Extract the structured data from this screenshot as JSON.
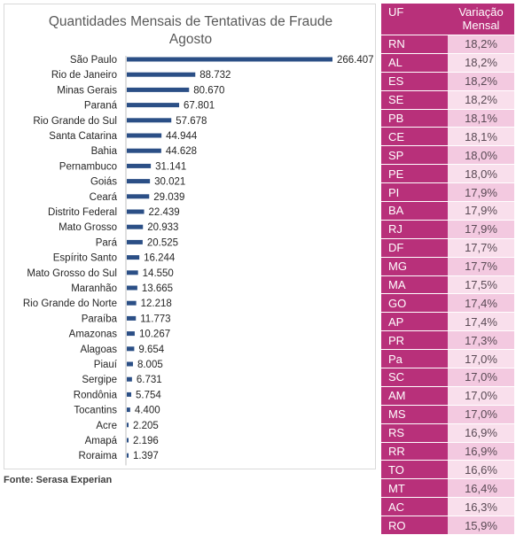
{
  "chart_data": {
    "type": "bar",
    "orientation": "horizontal",
    "title": "Quantidades Mensais de Tentativas de Fraude",
    "subtitle": "Agosto",
    "categories": [
      "São Paulo",
      "Rio de Janeiro",
      "Minas Gerais",
      "Paraná",
      "Rio Grande do Sul",
      "Santa Catarina",
      "Bahia",
      "Pernambuco",
      "Goiás",
      "Ceará",
      "Distrito Federal",
      "Mato Grosso",
      "Pará",
      "Espírito Santo",
      "Mato Grosso do Sul",
      "Maranhão",
      "Rio Grande do Norte",
      "Paraíba",
      "Amazonas",
      "Alagoas",
      "Piauí",
      "Sergipe",
      "Rondônia",
      "Tocantins",
      "Acre",
      "Amapá",
      "Roraima"
    ],
    "values": [
      266407,
      88732,
      80670,
      67801,
      57678,
      44944,
      44628,
      31141,
      30021,
      29039,
      22439,
      20933,
      20525,
      16244,
      14550,
      13665,
      12218,
      11773,
      10267,
      9654,
      8005,
      6731,
      5754,
      4400,
      2205,
      2196,
      1397
    ],
    "value_labels": [
      "266.407",
      "88.732",
      "80.670",
      "67.801",
      "57.678",
      "44.944",
      "44.628",
      "31.141",
      "30.021",
      "29.039",
      "22.439",
      "20.933",
      "20.525",
      "16.244",
      "14.550",
      "13.665",
      "12.218",
      "11.773",
      "10.267",
      "9.654",
      "8.005",
      "6.731",
      "5.754",
      "4.400",
      "2.205",
      "2.196",
      "1.397"
    ],
    "colors": {
      "bar": "#2b4f86"
    },
    "grid": false
  },
  "source": "Fonte: Serasa Experian",
  "table": {
    "headers": [
      "UF",
      "Variação Mensal"
    ],
    "rows": [
      [
        "RN",
        "18,2%"
      ],
      [
        "AL",
        "18,2%"
      ],
      [
        "ES",
        "18,2%"
      ],
      [
        "SE",
        "18,2%"
      ],
      [
        "PB",
        "18,1%"
      ],
      [
        "CE",
        "18,1%"
      ],
      [
        "SP",
        "18,0%"
      ],
      [
        "PE",
        "18,0%"
      ],
      [
        "PI",
        "17,9%"
      ],
      [
        "BA",
        "17,9%"
      ],
      [
        "RJ",
        "17,9%"
      ],
      [
        "DF",
        "17,7%"
      ],
      [
        "MG",
        "17,7%"
      ],
      [
        "MA",
        "17,5%"
      ],
      [
        "GO",
        "17,4%"
      ],
      [
        "AP",
        "17,4%"
      ],
      [
        "PR",
        "17,3%"
      ],
      [
        "Pa",
        "17,0%"
      ],
      [
        "SC",
        "17,0%"
      ],
      [
        "AM",
        "17,0%"
      ],
      [
        "MS",
        "17,0%"
      ],
      [
        "RS",
        "16,9%"
      ],
      [
        "RR",
        "16,9%"
      ],
      [
        "TO",
        "16,6%"
      ],
      [
        "MT",
        "16,4%"
      ],
      [
        "AC",
        "16,3%"
      ],
      [
        "RO",
        "15,9%"
      ]
    ],
    "colors": {
      "header": "#b8307a",
      "uf_cell": "#b8307a",
      "row_a": "#f3c9e0",
      "row_b": "#f9dfec"
    }
  }
}
